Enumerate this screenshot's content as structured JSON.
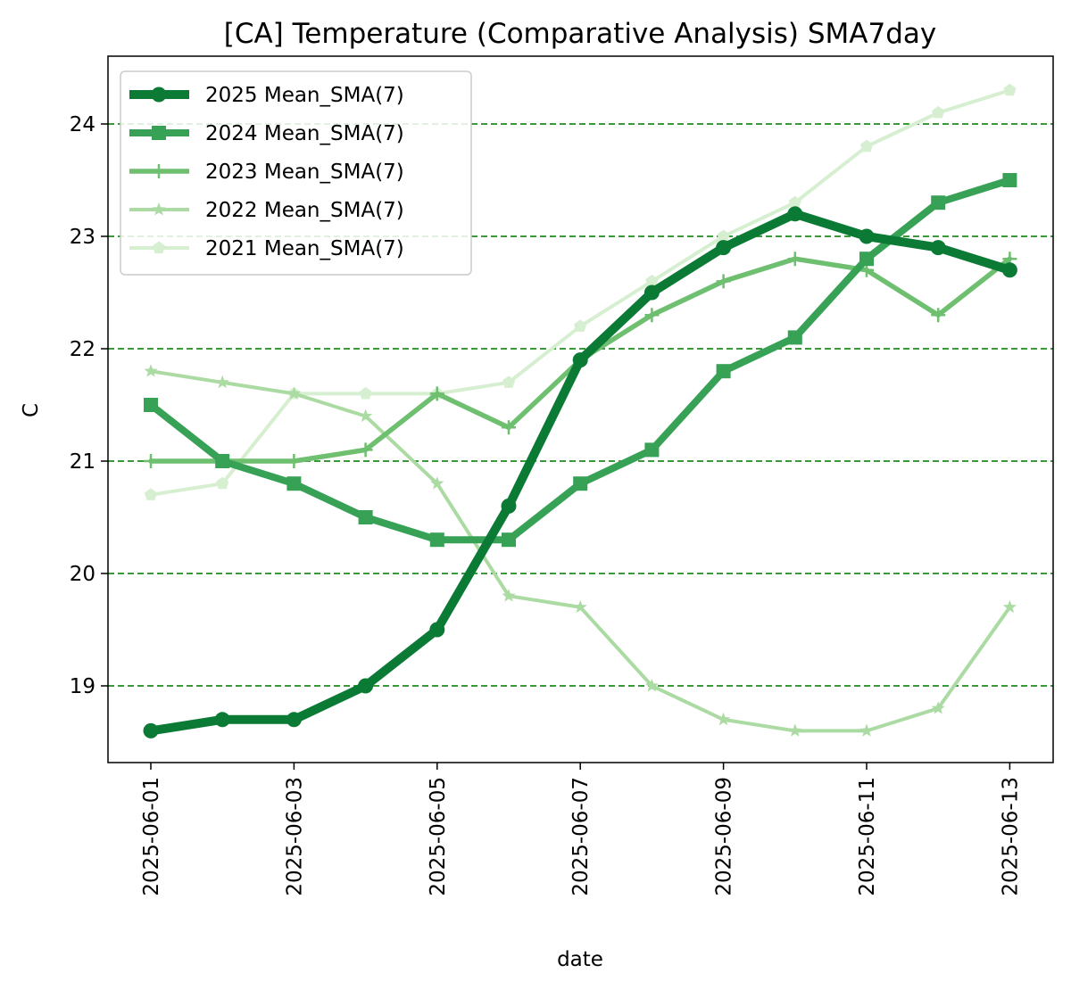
{
  "chart_data": {
    "type": "line",
    "title": "[CA] Temperature (Comparative Analysis) SMA7day",
    "xlabel": "date",
    "ylabel": "C",
    "x": [
      "2025-06-01",
      "2025-06-02",
      "2025-06-03",
      "2025-06-04",
      "2025-06-05",
      "2025-06-06",
      "2025-06-07",
      "2025-06-08",
      "2025-06-09",
      "2025-06-10",
      "2025-06-11",
      "2025-06-12",
      "2025-06-13"
    ],
    "x_ticks": [
      "2025-06-01",
      "2025-06-03",
      "2025-06-05",
      "2025-06-07",
      "2025-06-09",
      "2025-06-11",
      "2025-06-13"
    ],
    "y_ticks": [
      "19",
      "20",
      "21",
      "22",
      "23",
      "24"
    ],
    "ylim": [
      18.32,
      24.6
    ],
    "grid": "horizontal dashed",
    "grid_color": "#3a9a3a",
    "legend_position": "top-left",
    "series": [
      {
        "name": "2025 Mean_SMA(7)",
        "color": "#0b7a34",
        "marker": "circle",
        "values": [
          18.6,
          18.7,
          18.7,
          19.0,
          19.5,
          20.6,
          21.9,
          22.5,
          22.9,
          23.2,
          23.0,
          22.9,
          22.7
        ]
      },
      {
        "name": "2024 Mean_SMA(7)",
        "color": "#37a155",
        "marker": "square",
        "values": [
          21.5,
          21.0,
          20.8,
          20.5,
          20.3,
          20.3,
          20.8,
          21.1,
          21.8,
          22.1,
          22.8,
          23.3,
          23.5
        ]
      },
      {
        "name": "2023 Mean_SMA(7)",
        "color": "#6ebf6f",
        "marker": "plus",
        "values": [
          21.0,
          21.0,
          21.0,
          21.1,
          21.6,
          21.3,
          21.9,
          22.3,
          22.6,
          22.8,
          22.7,
          22.3,
          22.8
        ]
      },
      {
        "name": "2022 Mean_SMA(7)",
        "color": "#abdba3",
        "marker": "star",
        "values": [
          21.8,
          21.7,
          21.6,
          21.4,
          20.8,
          19.8,
          19.7,
          19.0,
          18.7,
          18.6,
          18.6,
          18.8,
          19.7
        ]
      },
      {
        "name": "2021 Mean_SMA(7)",
        "color": "#d6efd0",
        "marker": "pentagon",
        "values": [
          20.7,
          20.8,
          21.6,
          21.6,
          21.6,
          21.7,
          22.2,
          22.6,
          23.0,
          23.3,
          23.8,
          24.1,
          24.3
        ]
      }
    ]
  }
}
